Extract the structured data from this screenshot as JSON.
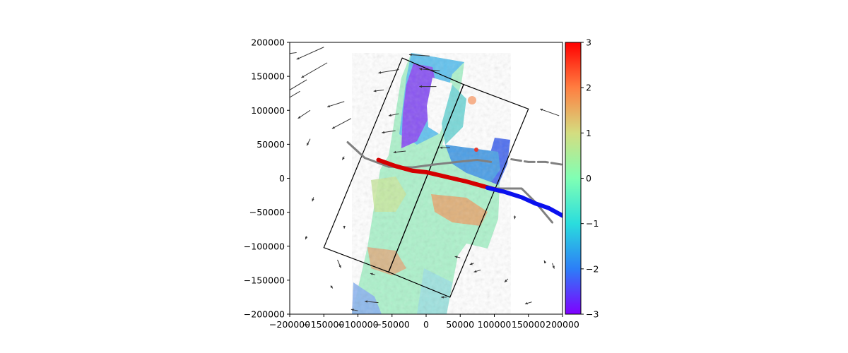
{
  "chart_data": {
    "type": "heatmap",
    "title": "",
    "xlabel": "",
    "ylabel": "",
    "xlim": [
      -200000,
      200000
    ],
    "ylim": [
      -200000,
      200000
    ],
    "x_ticks": [
      -200000,
      -150000,
      -100000,
      -50000,
      0,
      50000,
      100000,
      150000,
      200000
    ],
    "x_tick_labels": [
      "−200000",
      "−150000",
      "−100000",
      "−50000",
      "0",
      "50000",
      "100000",
      "150000",
      "200000"
    ],
    "y_ticks": [
      200000,
      150000,
      100000,
      50000,
      0,
      -50000,
      -100000,
      -150000,
      -200000
    ],
    "y_tick_labels": [
      "200000",
      "150000",
      "100000",
      "50000",
      "0",
      "−50000",
      "−100000",
      "−150000",
      "−200000"
    ],
    "grid": false,
    "colormap": "rainbow",
    "colorbar": {
      "range": [
        -3,
        3
      ],
      "ticks": [
        3,
        2,
        1,
        0,
        -1,
        -2,
        -3
      ],
      "tick_labels": [
        "3",
        "2",
        "1",
        "0",
        "−1",
        "−2",
        "−3"
      ],
      "colors": [
        "#7f00ff",
        "#2c7ef7",
        "#2adddd",
        "#80ffb4",
        "#d4dd80",
        "#ff7e41",
        "#ff0000"
      ]
    },
    "frames": [
      {
        "corners": [
          [
            -150000,
            -102000
          ],
          [
            -35000,
            177000
          ],
          [
            55000,
            138000
          ],
          [
            -55000,
            -138000
          ]
        ]
      },
      {
        "corners": [
          [
            -55000,
            -138000
          ],
          [
            55000,
            138000
          ],
          [
            150000,
            102000
          ],
          [
            35000,
            -175000
          ]
        ]
      }
    ],
    "fault_trace_red": [
      [
        -70000,
        27000
      ],
      [
        -45000,
        18000
      ],
      [
        -20000,
        11000
      ],
      [
        0,
        9000
      ],
      [
        30000,
        2000
      ],
      [
        60000,
        -5000
      ],
      [
        85000,
        -12000
      ],
      [
        110000,
        -19000
      ]
    ],
    "fault_trace_blue": [
      [
        90000,
        -14000
      ],
      [
        115000,
        -20000
      ],
      [
        140000,
        -28000
      ],
      [
        160000,
        -37000
      ],
      [
        180000,
        -44000
      ],
      [
        200000,
        -55000
      ]
    ],
    "fault_trace_gray_main": [
      [
        -115000,
        53000
      ],
      [
        -90000,
        30000
      ],
      [
        -55000,
        17000
      ],
      [
        -20000,
        16000
      ],
      [
        10000,
        20000
      ],
      [
        45000,
        24000
      ],
      [
        75000,
        27000
      ],
      [
        95000,
        24000
      ]
    ],
    "fault_trace_gray_east": [
      [
        125000,
        28000
      ],
      [
        150000,
        24000
      ],
      [
        175000,
        24000
      ],
      [
        200000,
        20000
      ]
    ],
    "fault_trace_gray_branch": [
      [
        100000,
        -15000
      ],
      [
        140000,
        -15000
      ],
      [
        160000,
        -35000
      ],
      [
        185000,
        -65000
      ]
    ],
    "velocity_vectors": [
      {
        "x": -190000,
        "y": 185000,
        "dx": -35000,
        "dy": -5000
      },
      {
        "x": -150000,
        "y": 193000,
        "dx": -40000,
        "dy": -18000
      },
      {
        "x": -145000,
        "y": 170000,
        "dx": -38000,
        "dy": -22000
      },
      {
        "x": -175000,
        "y": 145000,
        "dx": -30000,
        "dy": -18000
      },
      {
        "x": -185000,
        "y": 128000,
        "dx": -25000,
        "dy": -15000
      },
      {
        "x": -120000,
        "y": 113000,
        "dx": -25000,
        "dy": -8000
      },
      {
        "x": -110000,
        "y": 88000,
        "dx": -28000,
        "dy": -15000
      },
      {
        "x": -170000,
        "y": 100000,
        "dx": -18000,
        "dy": -12000
      },
      {
        "x": -40000,
        "y": 160000,
        "dx": -30000,
        "dy": -5000
      },
      {
        "x": -62000,
        "y": 130000,
        "dx": -15000,
        "dy": -2000
      },
      {
        "x": 5000,
        "y": 180000,
        "dx": -30000,
        "dy": 2000
      },
      {
        "x": 20000,
        "y": 158000,
        "dx": -30000,
        "dy": 3000
      },
      {
        "x": 15000,
        "y": 135000,
        "dx": -25000,
        "dy": 0
      },
      {
        "x": -40000,
        "y": 95000,
        "dx": -15000,
        "dy": -3000
      },
      {
        "x": -45000,
        "y": 70000,
        "dx": -20000,
        "dy": -3000
      },
      {
        "x": -30000,
        "y": 40000,
        "dx": -18000,
        "dy": -2000
      },
      {
        "x": 35000,
        "y": 45000,
        "dx": -15000,
        "dy": 0
      },
      {
        "x": 195000,
        "y": 92000,
        "dx": -28000,
        "dy": 10000
      },
      {
        "x": -170000,
        "y": 58000,
        "dx": -5000,
        "dy": -10000
      },
      {
        "x": -120000,
        "y": 32000,
        "dx": -3000,
        "dy": -5000
      },
      {
        "x": -165000,
        "y": -28000,
        "dx": -2000,
        "dy": -6000
      },
      {
        "x": -120000,
        "y": -70000,
        "dx": 0,
        "dy": -4000
      },
      {
        "x": 130000,
        "y": -55000,
        "dx": 0,
        "dy": -5000
      },
      {
        "x": 185000,
        "y": -125000,
        "dx": 3000,
        "dy": -8000
      },
      {
        "x": -130000,
        "y": -120000,
        "dx": 5000,
        "dy": -12000
      },
      {
        "x": -140000,
        "y": -158000,
        "dx": 3000,
        "dy": -4000
      },
      {
        "x": -70000,
        "y": -183000,
        "dx": -20000,
        "dy": 2000
      },
      {
        "x": -75000,
        "y": -142000,
        "dx": -7000,
        "dy": 2000
      },
      {
        "x": 50000,
        "y": -117000,
        "dx": -8000,
        "dy": 2000
      },
      {
        "x": 80000,
        "y": -135000,
        "dx": -10000,
        "dy": -3000
      },
      {
        "x": 120000,
        "y": -148000,
        "dx": -5000,
        "dy": -5000
      },
      {
        "x": 155000,
        "y": -182000,
        "dx": -10000,
        "dy": -3000
      },
      {
        "x": 30000,
        "y": -175000,
        "dx": -8000,
        "dy": 0
      },
      {
        "x": -100000,
        "y": -195000,
        "dx": -10000,
        "dy": 2000
      },
      {
        "x": 70000,
        "y": -125000,
        "dx": -6000,
        "dy": -2000
      },
      {
        "x": -175000,
        "y": -85000,
        "dx": -2000,
        "dy": -5000
      },
      {
        "x": 175000,
        "y": -125000,
        "dx": -2000,
        "dy": 4000
      }
    ]
  }
}
